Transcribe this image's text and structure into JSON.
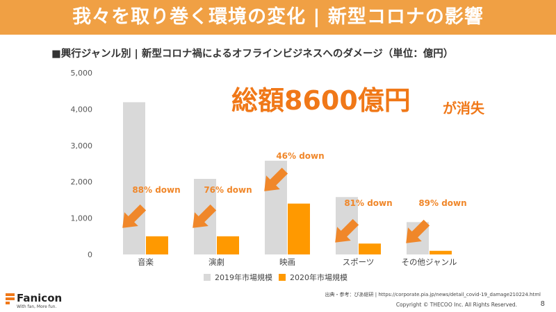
{
  "header": {
    "title": "我々を取り巻く環境の変化 | 新型コロナの影響"
  },
  "subtitle": "■興行ジャンル別 | 新型コロナ禍によるオフラインビジネスへのダメージ（単位：億円）",
  "headline": {
    "main": "総額8600億円",
    "sub": "が消失"
  },
  "chart_data": {
    "type": "bar",
    "categories": [
      "音楽",
      "演劇",
      "映画",
      "スポーツ",
      "その他ジャンル"
    ],
    "series": [
      {
        "name": "2019年市場規模",
        "color": "#d9d9d9",
        "values": [
          4190,
          2080,
          2580,
          1580,
          890
        ]
      },
      {
        "name": "2020年市場規模",
        "color": "#ff9900",
        "values": [
          500,
          500,
          1400,
          300,
          100
        ]
      }
    ],
    "declines": [
      "88% down",
      "76% down",
      "46% down",
      "81% down",
      "89% down"
    ],
    "ylim": [
      0,
      5000
    ],
    "yticks": [
      "5,000",
      "4,000",
      "3,000",
      "2,000",
      "1,000",
      "0"
    ],
    "ytick_values": [
      5000,
      4000,
      3000,
      2000,
      1000,
      0
    ],
    "grid": false,
    "legend_position": "bottom",
    "xlabel": "",
    "ylabel": ""
  },
  "footer": {
    "source": "出典・参考：ぴあ総研 | https://corporate.pia.jp/news/detail_covid-19_damage210224.html",
    "copyright": "Copyright © THECOO Inc. All Rights Reserved.",
    "page_number": "8"
  },
  "logo": {
    "name": "Fanicon",
    "tagline": "With fan, More fun."
  },
  "colors": {
    "title_bar": "#f0a044",
    "accent": "#f07818",
    "arrow": "#f0872a",
    "bar_2019": "#d9d9d9",
    "bar_2020": "#ff9900"
  }
}
